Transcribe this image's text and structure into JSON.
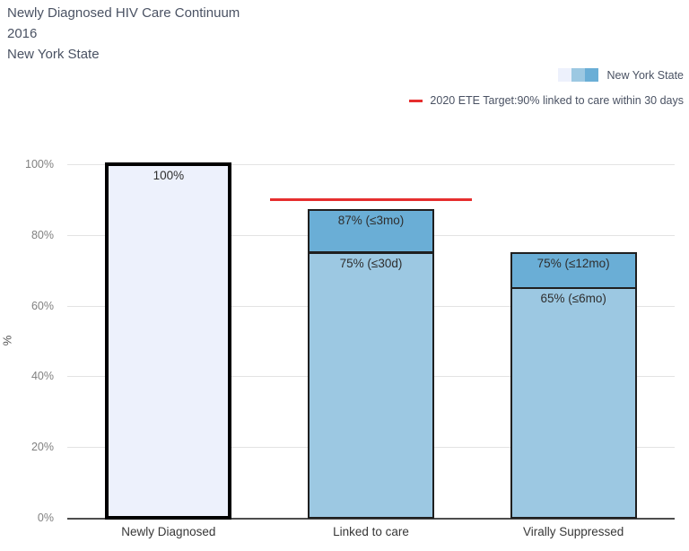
{
  "chart_data": {
    "type": "bar",
    "stacked": true,
    "title_lines": [
      "Newly Diagnosed HIV Care Continuum",
      "2016",
      "New York State"
    ],
    "ylabel": "%",
    "ylim": [
      0,
      100
    ],
    "yticks": [
      0,
      20,
      40,
      60,
      80,
      100
    ],
    "grid": true,
    "categories": [
      "Newly Diagnosed",
      "Linked to care",
      "Virally Suppressed"
    ],
    "bars": [
      {
        "category": "Newly Diagnosed",
        "segments": [
          {
            "value": 100,
            "label": "100%",
            "fill": "#edf1fc",
            "border": "#000000",
            "border_width": 4
          }
        ]
      },
      {
        "category": "Linked to care",
        "segments": [
          {
            "value": 75,
            "label": "75% (≤30d)",
            "fill": "#9cc8e2",
            "border": "#1f1f1f",
            "border_width": 2
          },
          {
            "value": 87,
            "label": "87% (≤3mo)",
            "fill": "#6aaed6",
            "border": "#1f1f1f",
            "border_width": 2
          }
        ]
      },
      {
        "category": "Virally Suppressed",
        "segments": [
          {
            "value": 65,
            "label": "65% (≤6mo)",
            "fill": "#9cc8e2",
            "border": "#1f1f1f",
            "border_width": 2
          },
          {
            "value": 75,
            "label": "75% (≤12mo)",
            "fill": "#6aaed6",
            "border": "#1f1f1f",
            "border_width": 2
          }
        ]
      }
    ],
    "target_line": {
      "value": 90,
      "category_index": 1,
      "color": "#e62e2e",
      "label": "2020 ETE Target:90% linked to care within 30 days"
    },
    "legend": {
      "position": "top-right",
      "series_label": "New York State",
      "swatches": [
        "#edf1fc",
        "#9cc8e2",
        "#6aaed6"
      ]
    }
  }
}
